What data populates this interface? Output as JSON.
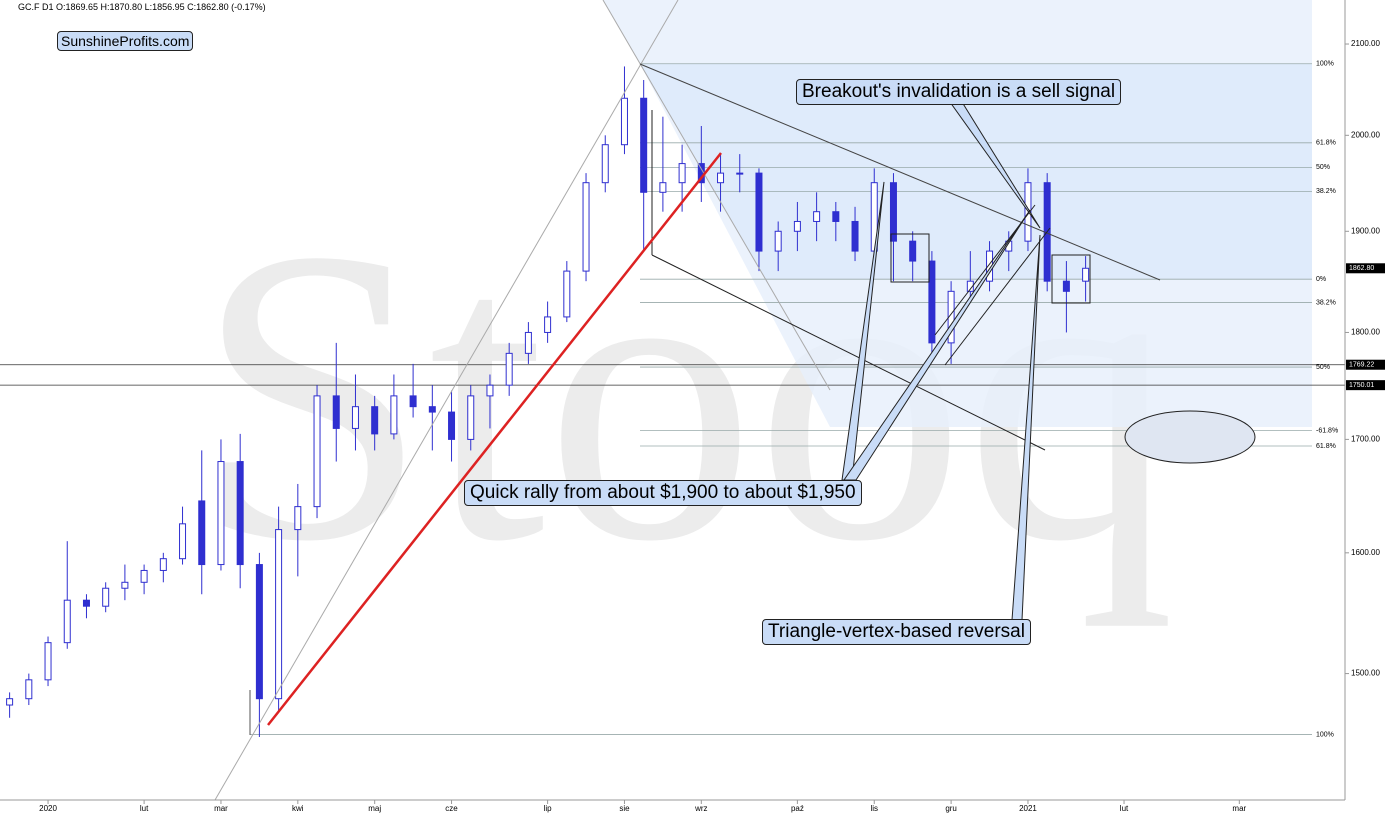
{
  "chart_data": {
    "type": "candlestick",
    "header": "GC.F  D1  O:1869.65  H:1870.80  L:1856.95  C:1862.80  (-0.17%)",
    "brand": "SunshineProfits.com",
    "watermark": "Stooq",
    "annotations": [
      "Breakout's invalidation is a sell signal",
      "Quick rally from about $1,900 to about $1,950",
      "Triangle-vertex-based reversal"
    ],
    "log_scale": true,
    "color": "#2f2fd0",
    "categories": [
      null,
      null,
      "2020",
      null,
      null,
      null,
      null,
      "lut",
      null,
      null,
      null,
      "mar",
      null,
      null,
      null,
      "kwi",
      null,
      null,
      null,
      "maj",
      null,
      null,
      null,
      "cze",
      null,
      null,
      null,
      null,
      "lip",
      null,
      null,
      null,
      "sie",
      null,
      null,
      null,
      "wrz",
      null,
      null,
      null,
      null,
      "paź",
      null,
      null,
      null,
      "lis",
      null,
      null,
      null,
      "gru",
      null,
      null,
      null,
      "2021",
      null,
      null,
      null,
      null,
      "lut",
      null,
      null,
      null,
      null,
      null,
      "mar",
      null,
      null,
      null,
      null,
      null
    ],
    "open": [
      1475,
      1480,
      1495,
      1525,
      1560,
      1555,
      1570,
      1575,
      1585,
      1595,
      1645,
      1590,
      1680,
      1590,
      1480,
      1620,
      1640,
      1740,
      1710,
      1730,
      1705,
      1740,
      1730,
      1725,
      1700,
      1740,
      1750,
      1780,
      1800,
      1815,
      1860,
      1950,
      1990,
      2040,
      1940,
      1950,
      1970,
      1950,
      1960,
      1960,
      1880,
      1900,
      1910,
      1920,
      1910,
      1880,
      1950,
      1890,
      1870,
      1790,
      1840,
      1850,
      1880,
      1890,
      1950,
      1850,
      1850,
      null,
      null,
      null,
      null,
      null,
      null,
      null,
      null,
      null,
      null,
      null,
      null,
      null
    ],
    "high": [
      1485,
      1500,
      1530,
      1610,
      1565,
      1575,
      1590,
      1590,
      1600,
      1640,
      1690,
      1700,
      1705,
      1600,
      1640,
      1660,
      1750,
      1790,
      1760,
      1740,
      1760,
      1770,
      1750,
      1745,
      1750,
      1760,
      1790,
      1810,
      1830,
      1870,
      1960,
      2000,
      2075,
      2060,
      2020,
      1990,
      2010,
      1980,
      1980,
      1965,
      1910,
      1930,
      1940,
      1930,
      1925,
      1965,
      1960,
      1900,
      1880,
      1850,
      1880,
      1890,
      1900,
      1965,
      1960,
      1870,
      1875,
      null,
      null,
      null,
      null,
      null,
      null,
      null,
      null,
      null,
      null,
      null,
      null,
      null
    ],
    "low": [
      1465,
      1475,
      1490,
      1520,
      1545,
      1550,
      1560,
      1565,
      1575,
      1590,
      1565,
      1585,
      1570,
      1450,
      1470,
      1580,
      1630,
      1680,
      1690,
      1690,
      1700,
      1720,
      1690,
      1680,
      1690,
      1710,
      1740,
      1770,
      1790,
      1810,
      1850,
      1940,
      1980,
      1880,
      1920,
      1920,
      1930,
      1920,
      1940,
      1860,
      1860,
      1880,
      1890,
      1890,
      1870,
      1875,
      1850,
      1850,
      1775,
      1770,
      1830,
      1840,
      1860,
      1880,
      1840,
      1800,
      1830,
      null,
      null,
      null,
      null,
      null,
      null,
      null,
      null,
      null,
      null,
      null,
      null,
      null
    ],
    "close": [
      1480,
      1495,
      1525,
      1560,
      1555,
      1570,
      1575,
      1585,
      1595,
      1625,
      1590,
      1680,
      1590,
      1480,
      1620,
      1640,
      1740,
      1710,
      1730,
      1705,
      1740,
      1730,
      1725,
      1700,
      1740,
      1750,
      1780,
      1800,
      1815,
      1860,
      1950,
      1990,
      2040,
      1940,
      1950,
      1970,
      1950,
      1960,
      1960,
      1880,
      1900,
      1910,
      1920,
      1910,
      1880,
      1950,
      1890,
      1870,
      1790,
      1840,
      1850,
      1880,
      1890,
      1950,
      1850,
      1840,
      1862.8,
      null,
      null,
      null,
      null,
      null,
      null,
      null,
      null,
      null,
      null,
      null,
      null,
      null
    ],
    "ylim": [
      1402,
      2150
    ],
    "yticks": [
      {
        "value": 1500,
        "label": "1500.00"
      },
      {
        "value": 1600,
        "label": "1600.00"
      },
      {
        "value": 1700,
        "label": "1700.00"
      },
      {
        "value": 1800,
        "label": "1800.00"
      },
      {
        "value": 1900,
        "label": "1900.00"
      },
      {
        "value": 2000,
        "label": "2000.00"
      },
      {
        "value": 2100,
        "label": "2100.00"
      }
    ],
    "fib_levels": [
      {
        "value": 2078,
        "label": "100%"
      },
      {
        "value": 1992,
        "label": "61.8%"
      },
      {
        "value": 1966,
        "label": "50%"
      },
      {
        "value": 1941,
        "label": "38.2%"
      },
      {
        "value": 1852,
        "label": "0%"
      },
      {
        "value": 1829,
        "label": "38.2%"
      },
      {
        "value": 1767,
        "label": "50%"
      },
      {
        "value": 1708,
        "label": "-61.8%"
      },
      {
        "value": 1694,
        "label": "61.8%"
      },
      {
        "value": 1452,
        "label": "100%"
      }
    ],
    "price_tags": [
      {
        "value": 1862.8,
        "label": "1862.80"
      },
      {
        "value": 1769.22,
        "label": "1769.22"
      },
      {
        "value": 1750.01,
        "label": "1750.01"
      }
    ]
  }
}
